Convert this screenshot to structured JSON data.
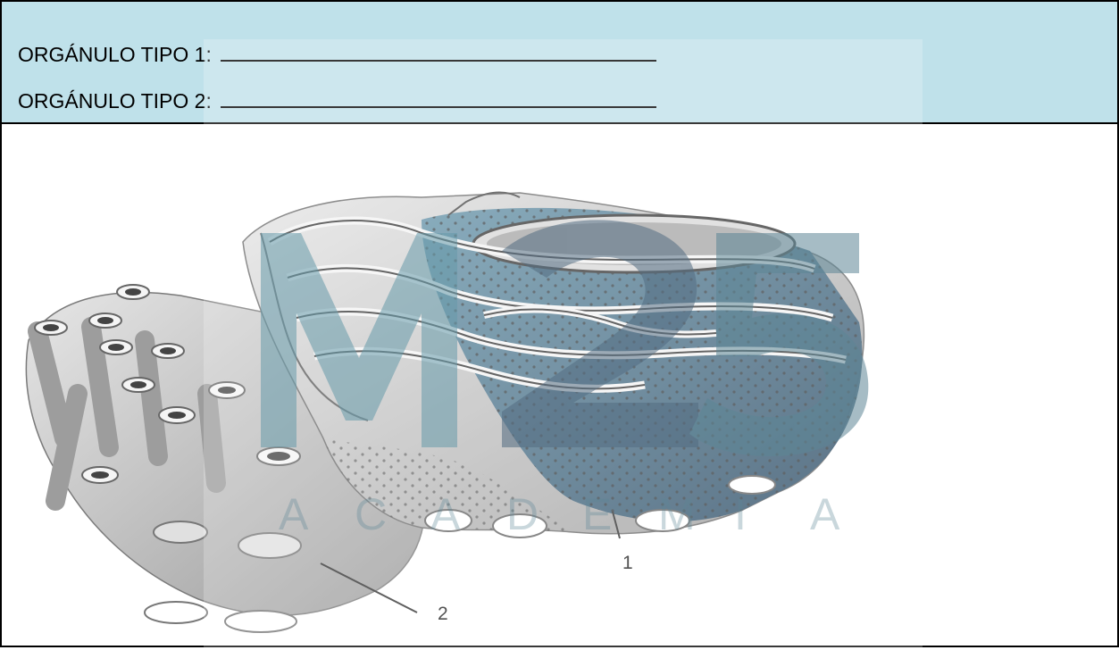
{
  "header": {
    "line1": "ORGÁNULO TIPO 1:",
    "line2": "ORGÁNULO TIPO 2:"
  },
  "diagram": {
    "label_1": "1",
    "label_2": "2",
    "watermark_letters": [
      "A",
      "C",
      "A",
      "D",
      "E",
      "M",
      "I",
      "A"
    ]
  },
  "colors": {
    "header_bg": "#bfe1ea",
    "membrane_grey": "#bdbdbd",
    "rough_er_blue": "#2f5876",
    "watermark_teal": "#3b7d92"
  }
}
